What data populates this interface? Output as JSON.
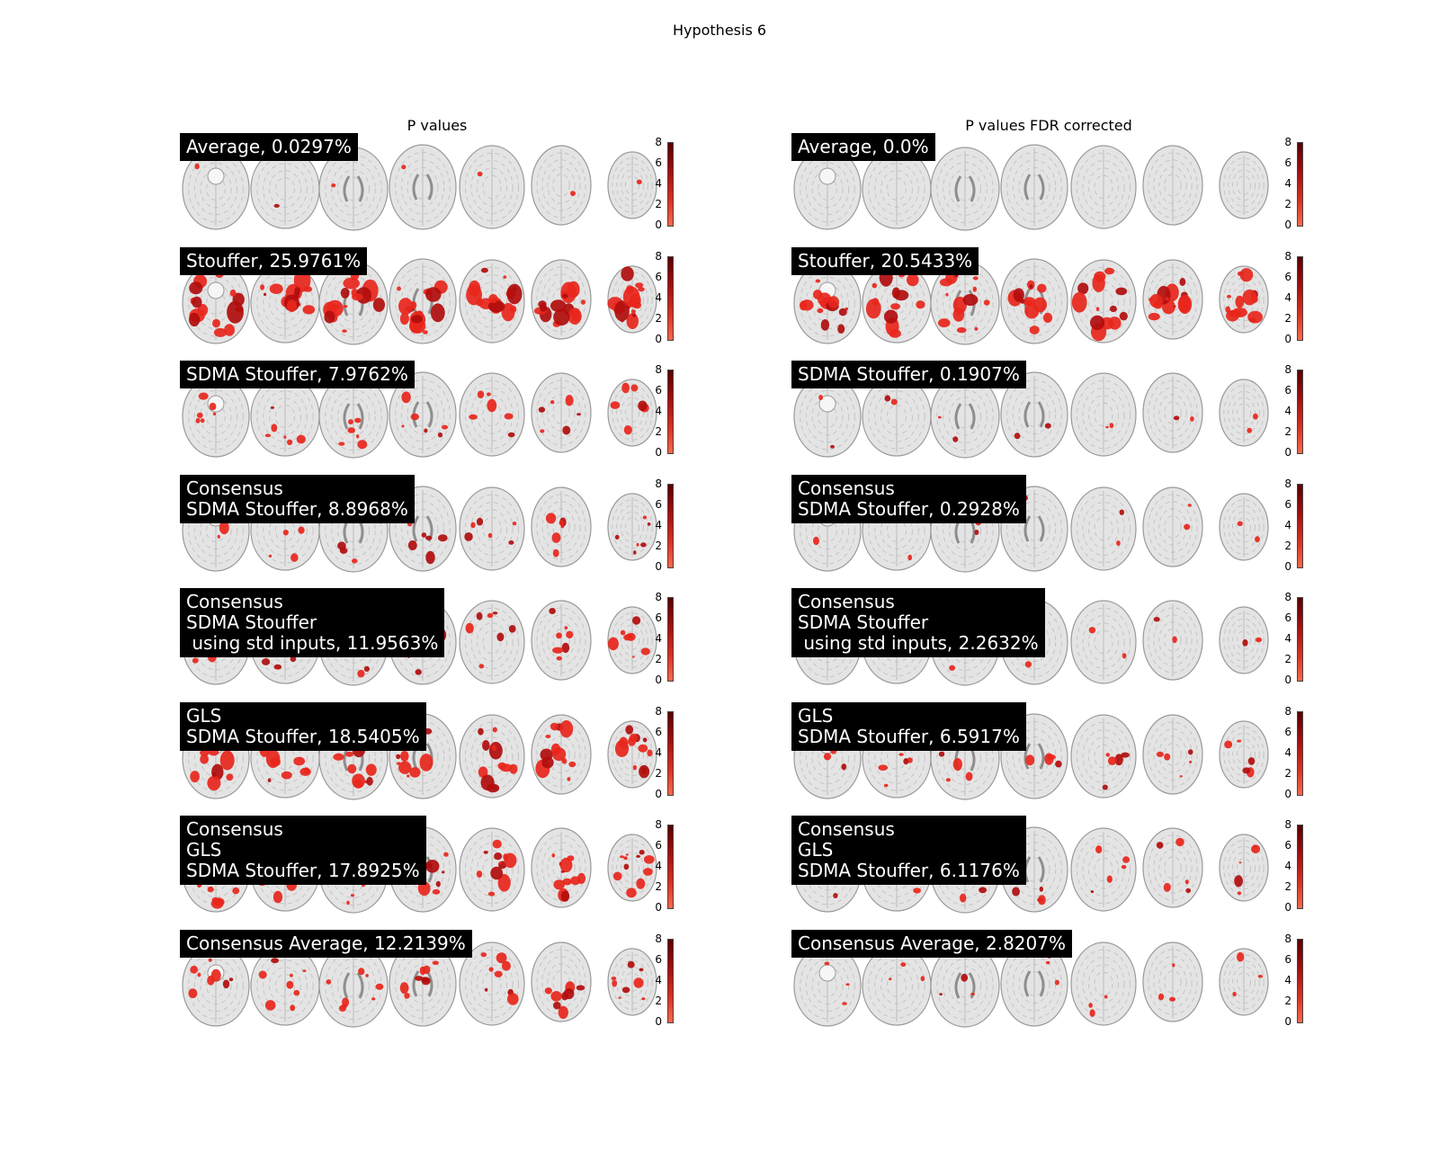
{
  "figure_title": "Hypothesis 6",
  "columns": [
    {
      "title": "P values",
      "panels": [
        {
          "label": "Average, 0.0297%",
          "activation": 0.03
        },
        {
          "label": "Stouffer, 25.9761%",
          "activation": 1.0
        },
        {
          "label": "SDMA Stouffer, 7.9762%",
          "activation": 0.35
        },
        {
          "label": "Consensus\nSDMA Stouffer, 8.8968%",
          "activation": 0.38
        },
        {
          "label": "Consensus\nSDMA Stouffer\n using std inputs, 11.9563%",
          "activation": 0.45
        },
        {
          "label": "GLS\nSDMA Stouffer, 18.5405%",
          "activation": 0.75
        },
        {
          "label": "Consensus\nGLS\nSDMA Stouffer, 17.8925%",
          "activation": 0.72
        },
        {
          "label": "Consensus Average, 12.2139%",
          "activation": 0.48
        }
      ]
    },
    {
      "title": "P values FDR corrected",
      "panels": [
        {
          "label": "Average, 0.0%",
          "activation": 0.0
        },
        {
          "label": "Stouffer, 20.5433%",
          "activation": 0.85
        },
        {
          "label": "SDMA Stouffer, 0.1907%",
          "activation": 0.04
        },
        {
          "label": "Consensus\nSDMA Stouffer, 0.2928%",
          "activation": 0.05
        },
        {
          "label": "Consensus\nSDMA Stouffer\n using std inputs, 2.2632%",
          "activation": 0.1
        },
        {
          "label": "GLS\nSDMA Stouffer, 6.5917%",
          "activation": 0.32
        },
        {
          "label": "Consensus\nGLS\nSDMA Stouffer, 6.1176%",
          "activation": 0.3
        },
        {
          "label": "Consensus Average, 2.8207%",
          "activation": 0.12
        }
      ]
    }
  ],
  "colorbar_ticks": [
    "8",
    "6",
    "4",
    "2",
    "0"
  ],
  "colors": {
    "activation_dark": "#b10d0d",
    "activation": "#e8261c",
    "brain_fill": "#e4e4e4",
    "brain_edge": "#9a9a9a",
    "label_bg": "#000000",
    "label_text": "#ffffff"
  }
}
